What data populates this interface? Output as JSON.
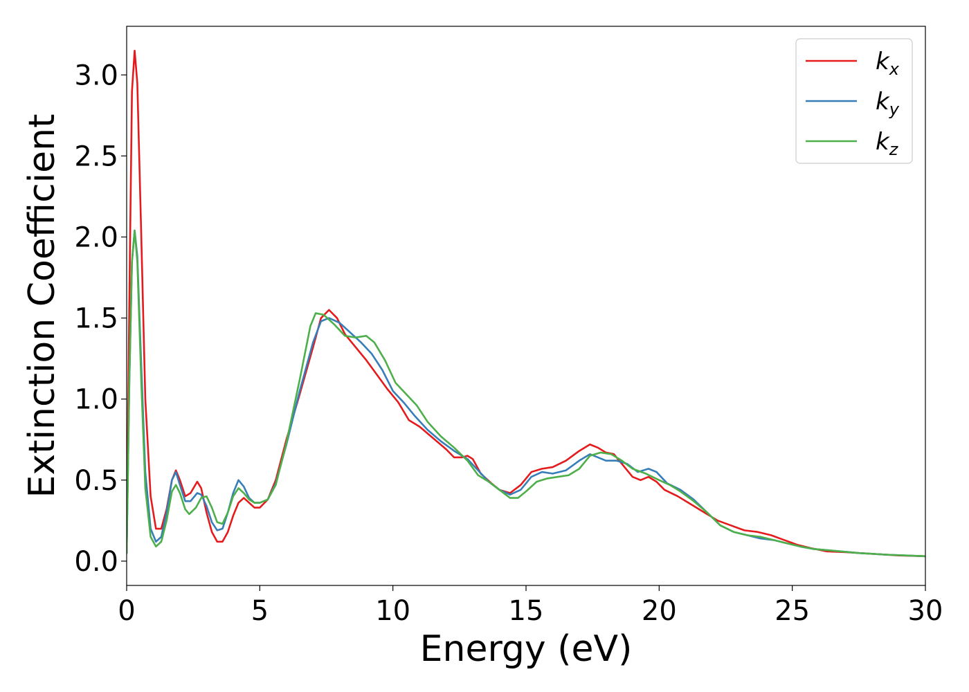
{
  "chart_data": {
    "type": "line",
    "title": "",
    "xlabel": "Energy (eV)",
    "ylabel": "Extinction Coefficient",
    "xlim": [
      0,
      30
    ],
    "ylim": [
      -0.15,
      3.3
    ],
    "xticks": [
      0,
      5,
      10,
      15,
      20,
      25,
      30
    ],
    "xtick_labels": [
      "0",
      "5",
      "10",
      "15",
      "20",
      "25",
      "30"
    ],
    "yticks": [
      0.0,
      0.5,
      1.0,
      1.5,
      2.0,
      2.5,
      3.0
    ],
    "ytick_labels": [
      "0.0",
      "0.5",
      "1.0",
      "1.5",
      "2.0",
      "2.5",
      "3.0"
    ],
    "grid": false,
    "legend_position": "top-right",
    "series": [
      {
        "name": "k",
        "subscript": "x",
        "color": "#e41a1c",
        "points": [
          [
            0,
            0.05
          ],
          [
            0.1,
            1.6
          ],
          [
            0.2,
            2.9
          ],
          [
            0.3,
            3.15
          ],
          [
            0.4,
            2.95
          ],
          [
            0.55,
            2.0
          ],
          [
            0.7,
            1.0
          ],
          [
            0.9,
            0.4
          ],
          [
            1.1,
            0.2
          ],
          [
            1.3,
            0.2
          ],
          [
            1.5,
            0.32
          ],
          [
            1.7,
            0.5
          ],
          [
            1.85,
            0.56
          ],
          [
            2.0,
            0.5
          ],
          [
            2.2,
            0.4
          ],
          [
            2.4,
            0.42
          ],
          [
            2.65,
            0.49
          ],
          [
            2.8,
            0.45
          ],
          [
            3.0,
            0.3
          ],
          [
            3.2,
            0.18
          ],
          [
            3.4,
            0.12
          ],
          [
            3.6,
            0.12
          ],
          [
            3.8,
            0.18
          ],
          [
            4.0,
            0.28
          ],
          [
            4.2,
            0.36
          ],
          [
            4.4,
            0.39
          ],
          [
            4.6,
            0.36
          ],
          [
            4.8,
            0.33
          ],
          [
            5.0,
            0.33
          ],
          [
            5.3,
            0.38
          ],
          [
            5.6,
            0.5
          ],
          [
            6.0,
            0.75
          ],
          [
            6.5,
            1.03
          ],
          [
            7.0,
            1.32
          ],
          [
            7.3,
            1.5
          ],
          [
            7.6,
            1.55
          ],
          [
            7.9,
            1.5
          ],
          [
            8.2,
            1.4
          ],
          [
            8.6,
            1.32
          ],
          [
            9.0,
            1.24
          ],
          [
            9.4,
            1.15
          ],
          [
            9.8,
            1.06
          ],
          [
            10.2,
            0.98
          ],
          [
            10.6,
            0.87
          ],
          [
            11.0,
            0.83
          ],
          [
            11.5,
            0.76
          ],
          [
            12.0,
            0.69
          ],
          [
            12.3,
            0.64
          ],
          [
            12.6,
            0.64
          ],
          [
            12.8,
            0.65
          ],
          [
            13.0,
            0.63
          ],
          [
            13.3,
            0.54
          ],
          [
            13.7,
            0.48
          ],
          [
            14.0,
            0.44
          ],
          [
            14.4,
            0.42
          ],
          [
            14.8,
            0.47
          ],
          [
            15.2,
            0.55
          ],
          [
            15.6,
            0.57
          ],
          [
            16.0,
            0.58
          ],
          [
            16.5,
            0.62
          ],
          [
            17.0,
            0.68
          ],
          [
            17.4,
            0.72
          ],
          [
            17.7,
            0.7
          ],
          [
            18.0,
            0.67
          ],
          [
            18.3,
            0.66
          ],
          [
            18.6,
            0.6
          ],
          [
            19.0,
            0.52
          ],
          [
            19.3,
            0.5
          ],
          [
            19.6,
            0.52
          ],
          [
            19.9,
            0.49
          ],
          [
            20.2,
            0.44
          ],
          [
            20.7,
            0.4
          ],
          [
            21.2,
            0.35
          ],
          [
            21.7,
            0.3
          ],
          [
            22.2,
            0.25
          ],
          [
            22.7,
            0.22
          ],
          [
            23.2,
            0.19
          ],
          [
            23.7,
            0.18
          ],
          [
            24.2,
            0.16
          ],
          [
            24.7,
            0.13
          ],
          [
            25.2,
            0.1
          ],
          [
            25.7,
            0.08
          ],
          [
            26.3,
            0.06
          ],
          [
            27.0,
            0.055
          ],
          [
            28.0,
            0.045
          ],
          [
            29.0,
            0.035
          ],
          [
            30.0,
            0.03
          ]
        ]
      },
      {
        "name": "k",
        "subscript": "y",
        "color": "#377eb8",
        "points": [
          [
            0,
            0.05
          ],
          [
            0.1,
            1.1
          ],
          [
            0.2,
            1.85
          ],
          [
            0.3,
            2.04
          ],
          [
            0.4,
            1.88
          ],
          [
            0.55,
            1.2
          ],
          [
            0.7,
            0.55
          ],
          [
            0.9,
            0.2
          ],
          [
            1.1,
            0.12
          ],
          [
            1.3,
            0.15
          ],
          [
            1.5,
            0.3
          ],
          [
            1.7,
            0.5
          ],
          [
            1.85,
            0.55
          ],
          [
            2.0,
            0.47
          ],
          [
            2.2,
            0.37
          ],
          [
            2.4,
            0.37
          ],
          [
            2.65,
            0.42
          ],
          [
            2.8,
            0.41
          ],
          [
            3.0,
            0.34
          ],
          [
            3.2,
            0.24
          ],
          [
            3.4,
            0.19
          ],
          [
            3.6,
            0.2
          ],
          [
            3.8,
            0.3
          ],
          [
            4.0,
            0.42
          ],
          [
            4.2,
            0.5
          ],
          [
            4.4,
            0.46
          ],
          [
            4.6,
            0.39
          ],
          [
            4.8,
            0.36
          ],
          [
            5.0,
            0.36
          ],
          [
            5.3,
            0.38
          ],
          [
            5.6,
            0.48
          ],
          [
            6.0,
            0.72
          ],
          [
            6.5,
            1.05
          ],
          [
            7.0,
            1.35
          ],
          [
            7.3,
            1.48
          ],
          [
            7.6,
            1.5
          ],
          [
            8.0,
            1.47
          ],
          [
            8.4,
            1.41
          ],
          [
            8.8,
            1.35
          ],
          [
            9.2,
            1.28
          ],
          [
            9.6,
            1.18
          ],
          [
            10.0,
            1.05
          ],
          [
            10.4,
            0.98
          ],
          [
            10.8,
            0.9
          ],
          [
            11.3,
            0.81
          ],
          [
            11.8,
            0.74
          ],
          [
            12.3,
            0.68
          ],
          [
            12.8,
            0.63
          ],
          [
            13.2,
            0.56
          ],
          [
            13.6,
            0.49
          ],
          [
            14.0,
            0.44
          ],
          [
            14.4,
            0.41
          ],
          [
            14.8,
            0.44
          ],
          [
            15.2,
            0.52
          ],
          [
            15.6,
            0.55
          ],
          [
            16.0,
            0.54
          ],
          [
            16.5,
            0.56
          ],
          [
            17.0,
            0.62
          ],
          [
            17.4,
            0.66
          ],
          [
            17.7,
            0.64
          ],
          [
            18.0,
            0.62
          ],
          [
            18.4,
            0.62
          ],
          [
            18.8,
            0.6
          ],
          [
            19.2,
            0.55
          ],
          [
            19.6,
            0.57
          ],
          [
            19.9,
            0.55
          ],
          [
            20.3,
            0.48
          ],
          [
            20.8,
            0.44
          ],
          [
            21.3,
            0.38
          ],
          [
            21.8,
            0.3
          ],
          [
            22.3,
            0.22
          ],
          [
            22.8,
            0.18
          ],
          [
            23.3,
            0.16
          ],
          [
            23.8,
            0.14
          ],
          [
            24.3,
            0.13
          ],
          [
            24.8,
            0.11
          ],
          [
            25.3,
            0.09
          ],
          [
            25.8,
            0.075
          ],
          [
            26.5,
            0.065
          ],
          [
            27.5,
            0.05
          ],
          [
            28.5,
            0.04
          ],
          [
            30.0,
            0.03
          ]
        ]
      },
      {
        "name": "k",
        "subscript": "z",
        "color": "#4daf4a",
        "points": [
          [
            0,
            0.05
          ],
          [
            0.1,
            1.1
          ],
          [
            0.2,
            1.85
          ],
          [
            0.3,
            2.04
          ],
          [
            0.4,
            1.85
          ],
          [
            0.55,
            1.1
          ],
          [
            0.7,
            0.45
          ],
          [
            0.9,
            0.15
          ],
          [
            1.1,
            0.09
          ],
          [
            1.3,
            0.12
          ],
          [
            1.5,
            0.25
          ],
          [
            1.7,
            0.43
          ],
          [
            1.85,
            0.47
          ],
          [
            2.0,
            0.42
          ],
          [
            2.2,
            0.32
          ],
          [
            2.35,
            0.29
          ],
          [
            2.6,
            0.33
          ],
          [
            2.8,
            0.39
          ],
          [
            3.0,
            0.4
          ],
          [
            3.2,
            0.33
          ],
          [
            3.4,
            0.24
          ],
          [
            3.6,
            0.23
          ],
          [
            3.8,
            0.3
          ],
          [
            4.0,
            0.4
          ],
          [
            4.2,
            0.45
          ],
          [
            4.4,
            0.42
          ],
          [
            4.6,
            0.38
          ],
          [
            4.8,
            0.36
          ],
          [
            5.0,
            0.36
          ],
          [
            5.3,
            0.38
          ],
          [
            5.6,
            0.47
          ],
          [
            6.0,
            0.73
          ],
          [
            6.5,
            1.12
          ],
          [
            6.9,
            1.45
          ],
          [
            7.1,
            1.53
          ],
          [
            7.4,
            1.52
          ],
          [
            7.8,
            1.46
          ],
          [
            8.2,
            1.39
          ],
          [
            8.6,
            1.38
          ],
          [
            9.0,
            1.39
          ],
          [
            9.3,
            1.35
          ],
          [
            9.7,
            1.24
          ],
          [
            10.1,
            1.1
          ],
          [
            10.5,
            1.03
          ],
          [
            10.9,
            0.96
          ],
          [
            11.3,
            0.86
          ],
          [
            11.8,
            0.77
          ],
          [
            12.3,
            0.7
          ],
          [
            12.8,
            0.62
          ],
          [
            13.2,
            0.53
          ],
          [
            13.6,
            0.49
          ],
          [
            14.0,
            0.44
          ],
          [
            14.4,
            0.39
          ],
          [
            14.7,
            0.39
          ],
          [
            15.0,
            0.43
          ],
          [
            15.4,
            0.49
          ],
          [
            15.8,
            0.51
          ],
          [
            16.2,
            0.52
          ],
          [
            16.6,
            0.53
          ],
          [
            17.0,
            0.57
          ],
          [
            17.4,
            0.65
          ],
          [
            17.8,
            0.67
          ],
          [
            18.2,
            0.66
          ],
          [
            18.6,
            0.62
          ],
          [
            19.0,
            0.57
          ],
          [
            19.5,
            0.54
          ],
          [
            20.0,
            0.5
          ],
          [
            20.4,
            0.47
          ],
          [
            20.8,
            0.43
          ],
          [
            21.3,
            0.37
          ],
          [
            21.8,
            0.3
          ],
          [
            22.3,
            0.22
          ],
          [
            22.8,
            0.18
          ],
          [
            23.3,
            0.16
          ],
          [
            23.8,
            0.15
          ],
          [
            24.3,
            0.13
          ],
          [
            24.8,
            0.11
          ],
          [
            25.3,
            0.09
          ],
          [
            25.8,
            0.075
          ],
          [
            26.5,
            0.065
          ],
          [
            27.5,
            0.05
          ],
          [
            28.5,
            0.04
          ],
          [
            30.0,
            0.03
          ]
        ]
      }
    ]
  }
}
